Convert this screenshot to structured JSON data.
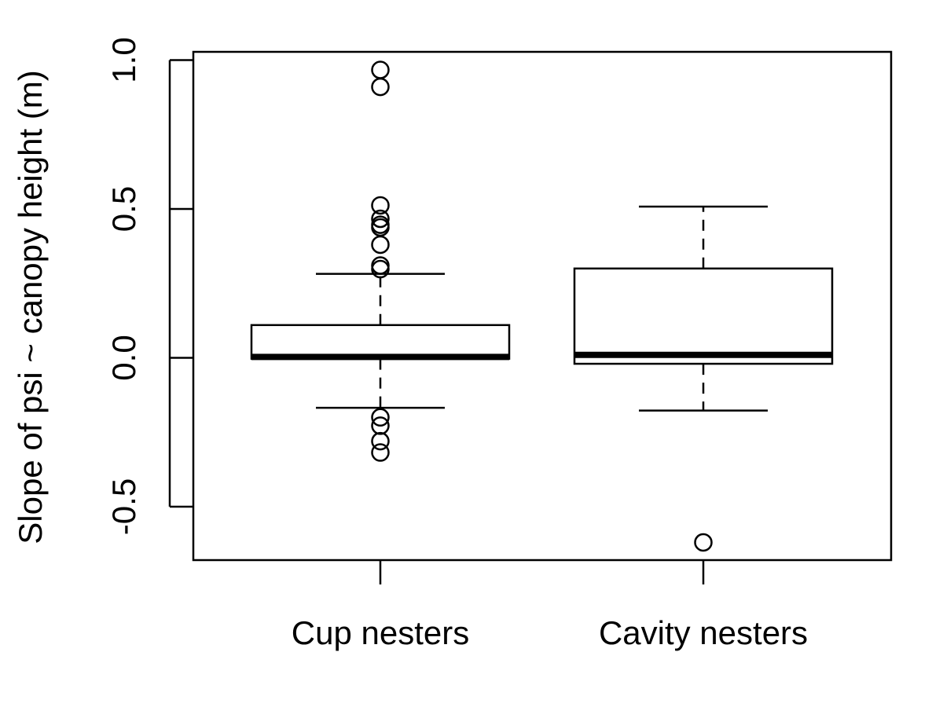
{
  "chart_data": {
    "type": "box",
    "title": "",
    "xlabel": "",
    "ylabel": "Slope of psi ~ canopy height (m)",
    "ylim": [
      -0.685,
      1.03
    ],
    "y_ticks": [
      -0.5,
      0.0,
      0.5,
      1.0
    ],
    "y_tick_labels": [
      "-0.5",
      "0.0",
      "0.5",
      "1.0"
    ],
    "grid": false,
    "legend": "none",
    "categories": [
      "Cup nesters",
      "Cavity nesters"
    ],
    "boxes": [
      {
        "name": "Cup nesters",
        "whisker_low": -0.168,
        "q1": -0.003,
        "median": 0.003,
        "q3": 0.11,
        "whisker_high": 0.282,
        "outliers": [
          0.967,
          0.91,
          0.512,
          0.467,
          0.447,
          0.438,
          0.38,
          0.31,
          0.298,
          -0.2,
          -0.228,
          -0.28,
          -0.318
        ]
      },
      {
        "name": "Cavity nesters",
        "whisker_low": -0.177,
        "q1": -0.02,
        "median": 0.01,
        "q3": 0.3,
        "whisker_high": 0.508,
        "outliers": [
          -0.62
        ]
      }
    ],
    "colors": {
      "box_fill": "#ffffff",
      "stroke": "#000000",
      "background": "#ffffff"
    }
  }
}
